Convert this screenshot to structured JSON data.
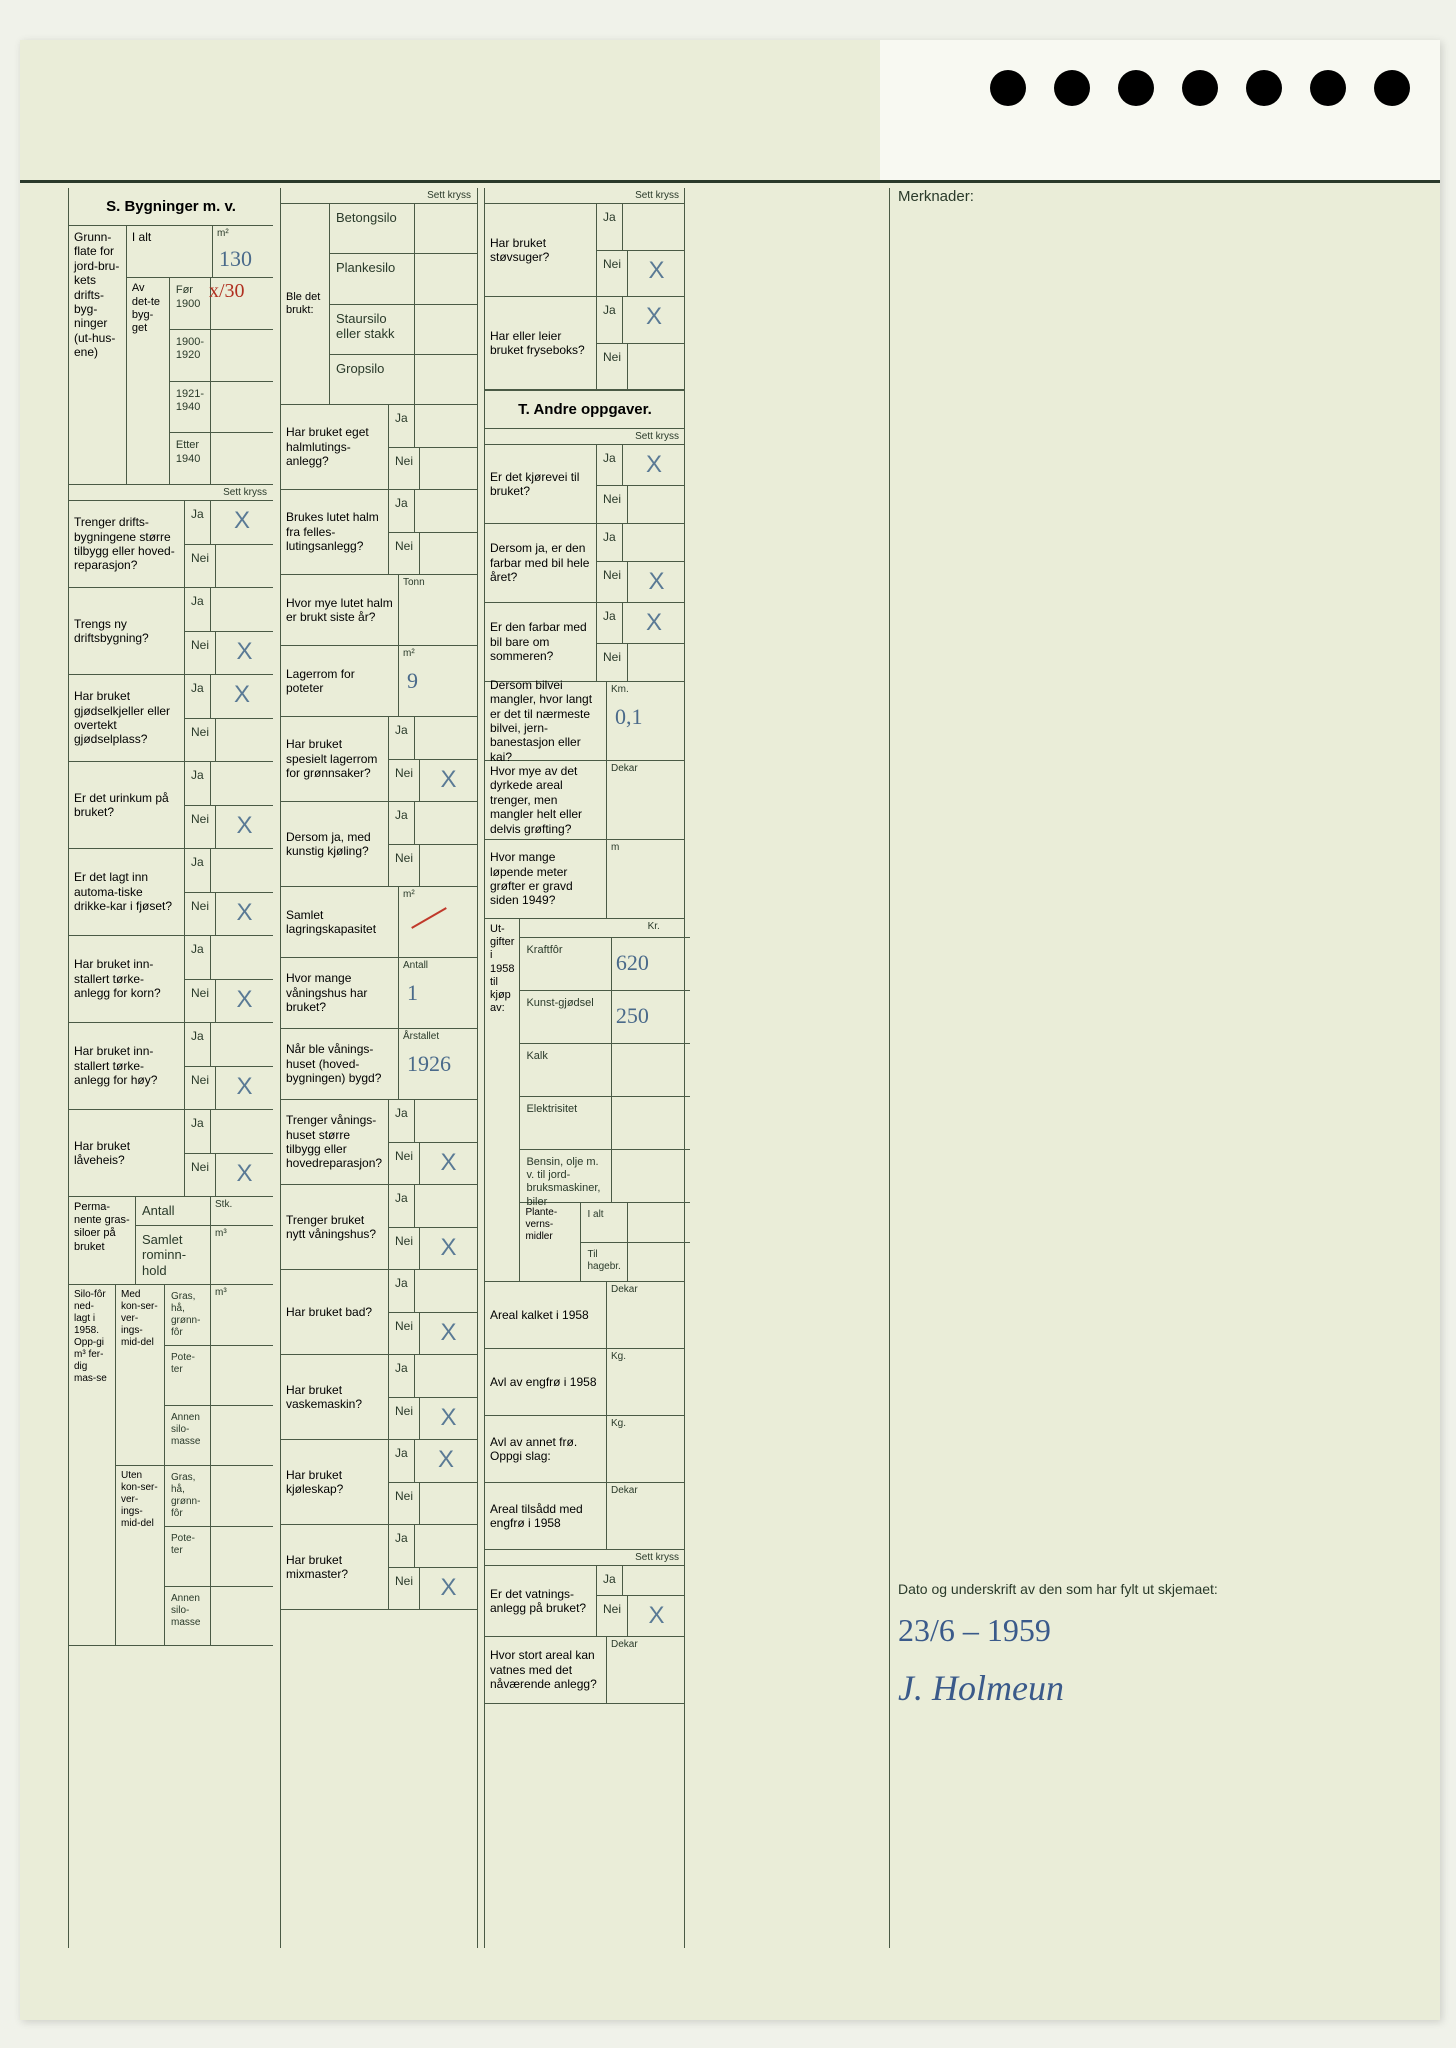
{
  "merknader_label": "Merknader:",
  "sett_kryss": "Sett kryss",
  "section_s_title": "S. Bygninger m. v.",
  "section_t_title": "T. Andre oppgaver.",
  "grunnflate": {
    "title": "Grunn-flate for jord-bru-kets drifts-byg-ninger (ut-hus-ene)",
    "ialt": "I alt",
    "ialt_val": "130",
    "av_dette": "Av det-te byg-get",
    "periods": [
      "Før 1900",
      "1900-1920",
      "1921-1940",
      "Etter 1940"
    ],
    "for1900_val": "x/30",
    "unit": "m²"
  },
  "questions_left": [
    {
      "q": "Trenger drifts-bygningene større tilbygg eller hoved-reparasjon?",
      "ja": "X",
      "nei": ""
    },
    {
      "q": "Trengs ny driftsbygning?",
      "ja": "",
      "nei": "X"
    },
    {
      "q": "Har bruket gjødselkjeller eller overtekt gjødselplass?",
      "ja": "X",
      "nei": ""
    },
    {
      "q": "Er det urinkum på bruket?",
      "ja": "",
      "nei": "X"
    },
    {
      "q": "Er det lagt inn automa-tiske drikke-kar i fjøset?",
      "ja": "",
      "nei": "X"
    },
    {
      "q": "Har bruket inn-stallert tørke-anlegg for korn?",
      "ja": "",
      "nei": "X"
    },
    {
      "q": "Har bruket inn-stallert tørke-anlegg for høy?",
      "ja": "",
      "nei": "X"
    },
    {
      "q": "Har bruket låveheis?",
      "ja": "",
      "nei": "X"
    }
  ],
  "silo_perm": {
    "title": "Perma-nente gras-siloer på bruket",
    "rows": [
      "Antall",
      "Samlet rominn-hold"
    ],
    "unit_stk": "Stk.",
    "unit_m3": "m³"
  },
  "silofor": {
    "title": "Silo-fôr ned-lagt i 1958. Opp-gi m³ fer-dig mas-se",
    "med": "Med kon-ser-ver-ings-mid-del",
    "uten": "Uten kon-ser-ver-ings-mid-del",
    "types": [
      "Gras, hå, grønn-fôr",
      "Pote-ter",
      "Annen silo-masse"
    ],
    "unit": "m³"
  },
  "ble_brukt": {
    "title": "Ble det brukt:",
    "items": [
      "Betongsilo",
      "Plankesilo",
      "Staursilo eller stakk",
      "Gropsilo"
    ]
  },
  "mid_questions": [
    {
      "q": "Har bruket eget halmlutings-anlegg?",
      "ja": "",
      "nei": ""
    },
    {
      "q": "Brukes lutet halm fra felles-lutingsanlegg?",
      "ja": "",
      "nei": ""
    },
    {
      "q": "Hvor mye lutet halm er brukt siste år?",
      "unit": "Tonn",
      "val": ""
    },
    {
      "q": "Lagerrom for poteter",
      "unit": "m²",
      "val": "9"
    },
    {
      "q": "Har bruket spesielt lagerrom for grønnsaker?",
      "ja": "",
      "nei": "X"
    },
    {
      "q": "Dersom ja, med kunstig kjøling?",
      "ja": "",
      "nei": ""
    },
    {
      "q": "Samlet lagringskapasitet",
      "unit": "m²",
      "val": "",
      "struck": true
    },
    {
      "q": "Hvor mange våningshus har bruket?",
      "unit": "Antall",
      "val": "1"
    },
    {
      "q": "Når ble vånings-huset (hoved-bygningen) bygd?",
      "unit": "Årstallet",
      "val": "1926"
    },
    {
      "q": "Trenger vånings-huset større tilbygg eller hovedreparasjon?",
      "ja": "",
      "nei": "X"
    },
    {
      "q": "Trenger bruket nytt våningshus?",
      "ja": "",
      "nei": "X"
    },
    {
      "q": "Har bruket bad?",
      "ja": "",
      "nei": "X"
    },
    {
      "q": "Har bruket vaskemaskin?",
      "ja": "",
      "nei": "X"
    },
    {
      "q": "Har bruket kjøleskap?",
      "ja": "X",
      "nei": ""
    },
    {
      "q": "Har bruket mixmaster?",
      "ja": "",
      "nei": "X"
    }
  ],
  "right_top": [
    {
      "q": "Har bruket støvsuger?",
      "ja": "",
      "nei": "X"
    },
    {
      "q": "Har eller leier bruket fryseboks?",
      "ja": "X",
      "nei": ""
    }
  ],
  "t_questions": [
    {
      "q": "Er det kjørevei til bruket?",
      "ja": "X",
      "nei": ""
    },
    {
      "q": "Dersom ja, er den farbar med bil hele året?",
      "ja": "",
      "nei": "X"
    },
    {
      "q": "Er den farbar med bil bare om sommeren?",
      "ja": "X",
      "nei": ""
    },
    {
      "q": "Dersom bilvei mangler, hvor langt er det til nærmeste bilvei, jern-banestasjon eller kai?",
      "unit": "Km.",
      "val": "0,1"
    },
    {
      "q": "Hvor mye av det dyrkede areal trenger, men mangler helt eller delvis grøfting?",
      "unit": "Dekar",
      "val": ""
    },
    {
      "q": "Hvor mange løpende meter grøfter er gravd siden 1949?",
      "unit": "m",
      "val": ""
    }
  ],
  "utgifter": {
    "title": "Ut-gifter i 1958 til kjøp av:",
    "unit": "Kr.",
    "rows": [
      {
        "label": "Kraftfôr",
        "val": "620"
      },
      {
        "label": "Kunst-gjødsel",
        "val": "250"
      },
      {
        "label": "Kalk",
        "val": ""
      },
      {
        "label": "Elektrisitet",
        "val": ""
      },
      {
        "label": "Bensin, olje m. v. til jord-bruksmaskiner, biler",
        "val": ""
      }
    ],
    "plante": {
      "label": "Plante-verns-midler",
      "sub1": "I alt",
      "sub2": "Til hagebr."
    }
  },
  "bottom_right": [
    {
      "q": "Areal kalket i 1958",
      "unit": "Dekar",
      "val": ""
    },
    {
      "q": "Avl av engfrø i 1958",
      "unit": "Kg.",
      "val": ""
    },
    {
      "q": "Avl av annet frø. Oppgi slag:",
      "unit": "Kg.",
      "val": ""
    },
    {
      "q": "Areal tilsådd med engfrø i 1958",
      "unit": "Dekar",
      "val": ""
    },
    {
      "q": "Er det vatnings-anlegg på bruket?",
      "ja": "",
      "nei": "X"
    },
    {
      "q": "Hvor stort areal kan vatnes med det nåværende anlegg?",
      "unit": "Dekar",
      "val": ""
    }
  ],
  "signature": {
    "label": "Dato og underskrift av den som har fylt ut skjemaet:",
    "date": "23/6 – 1959",
    "name": "J. Holmeun"
  },
  "ja": "Ja",
  "nei": "Nei"
}
